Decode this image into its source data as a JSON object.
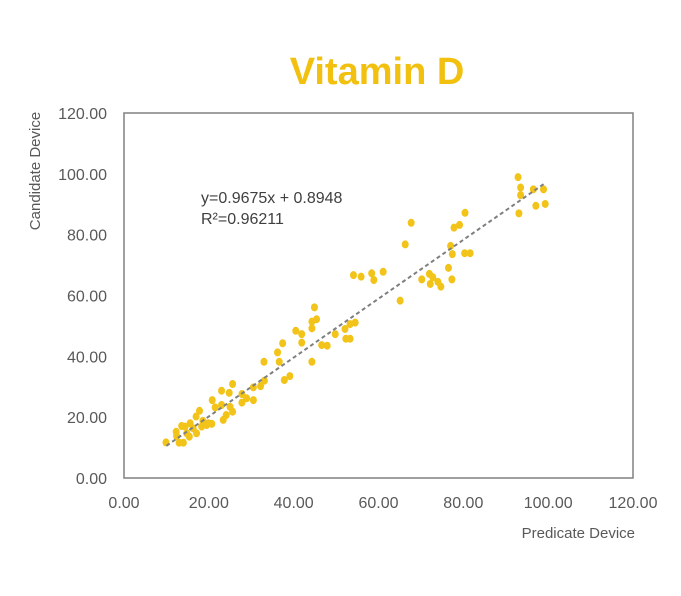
{
  "chart_data": {
    "type": "scatter",
    "title": "Vitamin D",
    "xlabel": "Predicate Device",
    "ylabel": "Candidate Device",
    "xlim": [
      0,
      120
    ],
    "ylim": [
      0,
      120
    ],
    "x_ticks": [
      "0.00",
      "20.00",
      "40.00",
      "60.00",
      "80.00",
      "100.00",
      "120.00"
    ],
    "y_ticks": [
      "0.00",
      "20.00",
      "40.00",
      "60.00",
      "80.00",
      "100.00",
      "120.00"
    ],
    "grid": false,
    "legend": "none",
    "point_color": "#F2C318",
    "trendline": {
      "slope": 0.9675,
      "intercept": 0.8948,
      "x_range": [
        10,
        99
      ],
      "equation_label": "y=0.9675x + 0.8948",
      "r2_label": "R²=0.96211",
      "color": "#7F7F7F"
    },
    "points": [
      [
        92.9,
        98.9
      ],
      [
        93.5,
        95.5
      ],
      [
        93.5,
        93.0
      ],
      [
        93.1,
        87.0
      ],
      [
        96.5,
        94.9
      ],
      [
        98.9,
        94.9
      ],
      [
        97.1,
        89.5
      ],
      [
        99.3,
        90.1
      ],
      [
        80.4,
        87.2
      ],
      [
        79.1,
        83.2
      ],
      [
        77.8,
        82.3
      ],
      [
        77.0,
        76.3
      ],
      [
        77.4,
        73.6
      ],
      [
        80.3,
        73.9
      ],
      [
        81.6,
        73.9
      ],
      [
        67.7,
        83.9
      ],
      [
        66.3,
        76.8
      ],
      [
        76.5,
        69.1
      ],
      [
        77.3,
        65.3
      ],
      [
        72.0,
        67.1
      ],
      [
        72.8,
        66.0
      ],
      [
        70.2,
        65.3
      ],
      [
        72.2,
        63.8
      ],
      [
        74.0,
        64.5
      ],
      [
        74.7,
        62.9
      ],
      [
        54.1,
        66.7
      ],
      [
        55.9,
        66.2
      ],
      [
        58.4,
        67.3
      ],
      [
        58.9,
        65.1
      ],
      [
        61.1,
        67.8
      ],
      [
        65.1,
        58.3
      ],
      [
        54.5,
        51.1
      ],
      [
        53.3,
        50.6
      ],
      [
        52.1,
        49.0
      ],
      [
        49.8,
        47.3
      ],
      [
        52.3,
        45.8
      ],
      [
        53.3,
        45.8
      ],
      [
        44.9,
        56.1
      ],
      [
        45.4,
        52.2
      ],
      [
        44.3,
        51.4
      ],
      [
        44.3,
        49.2
      ],
      [
        40.5,
        48.4
      ],
      [
        41.9,
        47.3
      ],
      [
        41.9,
        44.5
      ],
      [
        46.6,
        43.7
      ],
      [
        47.9,
        43.5
      ],
      [
        37.4,
        44.3
      ],
      [
        36.2,
        41.3
      ],
      [
        36.6,
        38.2
      ],
      [
        33.0,
        38.2
      ],
      [
        44.3,
        38.2
      ],
      [
        39.1,
        33.5
      ],
      [
        37.8,
        32.2
      ],
      [
        33.1,
        32.0
      ],
      [
        32.2,
        30.2
      ],
      [
        30.5,
        29.8
      ],
      [
        25.6,
        30.9
      ],
      [
        23.0,
        28.7
      ],
      [
        24.8,
        28.0
      ],
      [
        27.8,
        27.6
      ],
      [
        28.9,
        26.2
      ],
      [
        30.5,
        25.6
      ],
      [
        27.8,
        24.8
      ],
      [
        20.8,
        25.6
      ],
      [
        21.5,
        23.2
      ],
      [
        23.0,
        24.0
      ],
      [
        25.0,
        23.4
      ],
      [
        25.6,
        21.8
      ],
      [
        24.1,
        20.7
      ],
      [
        23.4,
        19.1
      ],
      [
        17.8,
        22.1
      ],
      [
        17.0,
        20.2
      ],
      [
        18.6,
        18.8
      ],
      [
        19.9,
        18.0
      ],
      [
        20.7,
        17.8
      ],
      [
        15.6,
        18.0
      ],
      [
        14.4,
        16.9
      ],
      [
        13.6,
        17.1
      ],
      [
        12.3,
        15.2
      ],
      [
        12.4,
        13.8
      ],
      [
        14.8,
        14.7
      ],
      [
        17.1,
        14.7
      ],
      [
        15.4,
        13.6
      ],
      [
        13.0,
        11.6
      ],
      [
        14.0,
        11.6
      ],
      [
        9.9,
        11.7
      ],
      [
        18.3,
        16.9
      ],
      [
        19.5,
        17.4
      ],
      [
        16.3,
        16.3
      ]
    ]
  }
}
